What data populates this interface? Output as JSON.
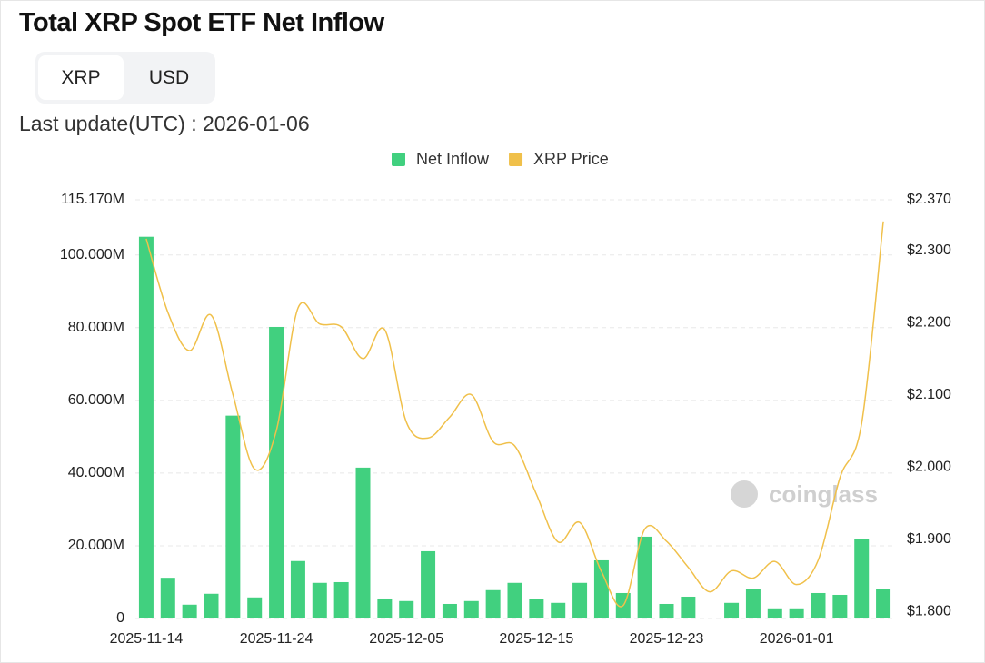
{
  "header": {
    "title": "Total XRP Spot ETF Net Inflow",
    "tabs": [
      "XRP",
      "USD"
    ],
    "last_update_label": "Last update(UTC) : 2026-01-06"
  },
  "chart_data": {
    "type": "bar-line",
    "categories": [
      "2025-11-14",
      null,
      null,
      null,
      null,
      null,
      "2025-11-24",
      null,
      null,
      null,
      null,
      null,
      "2025-12-05",
      null,
      null,
      null,
      null,
      null,
      "2025-12-15",
      null,
      null,
      null,
      null,
      null,
      "2025-12-23",
      null,
      null,
      null,
      null,
      null,
      "2026-01-01",
      null,
      null,
      null,
      null
    ],
    "series": [
      {
        "name": "Net Inflow",
        "color": "#41d07f",
        "type": "bar",
        "axis": "y",
        "values": [
          105,
          11.2,
          3.8,
          6.8,
          55.8,
          5.8,
          80.2,
          15.8,
          9.8,
          10,
          41.5,
          5.5,
          4.8,
          18.5,
          4,
          4.8,
          7.8,
          9.8,
          5.3,
          4.3,
          9.8,
          16,
          7,
          22.5,
          4,
          6,
          0,
          4.3,
          8,
          2.8,
          2.8,
          7,
          6.5,
          21.8,
          8
        ]
      },
      {
        "name": "XRP Price",
        "color": "#f0c04a",
        "type": "line",
        "axis": "y2",
        "values": [
          2.316,
          2.214,
          2.161,
          2.21,
          2.1,
          1.997,
          2.05,
          2.22,
          2.198,
          2.194,
          2.15,
          2.19,
          2.062,
          2.04,
          2.069,
          2.1,
          2.035,
          2.029,
          1.962,
          1.896,
          1.923,
          1.855,
          1.808,
          1.914,
          1.897,
          1.861,
          1.827,
          1.856,
          1.846,
          1.869,
          1.837,
          1.871,
          1.985,
          2.06,
          2.34
        ]
      }
    ],
    "ylim": [
      0,
      115.17
    ],
    "yticks": [
      0,
      {
        "value": 20,
        "label": "20.000M"
      },
      {
        "value": 40,
        "label": "40.000M"
      },
      {
        "value": 60,
        "label": "60.000M"
      },
      {
        "value": 80,
        "label": "80.000M"
      },
      {
        "value": 100,
        "label": "100.000M"
      },
      {
        "value": 115.17,
        "label": "115.170M"
      }
    ],
    "y2lim": [
      1.79,
      2.37
    ],
    "y2ticks": [
      {
        "value": 1.8,
        "label": "$1.800"
      },
      {
        "value": 1.9,
        "label": "$1.900"
      },
      {
        "value": 2.0,
        "label": "$2.000"
      },
      {
        "value": 2.1,
        "label": "$2.100"
      },
      {
        "value": 2.2,
        "label": "$2.200"
      },
      {
        "value": 2.3,
        "label": "$2.300"
      },
      {
        "value": 2.37,
        "label": "$2.370"
      }
    ],
    "grid": true,
    "legend": "top",
    "watermark": "coinglass"
  }
}
